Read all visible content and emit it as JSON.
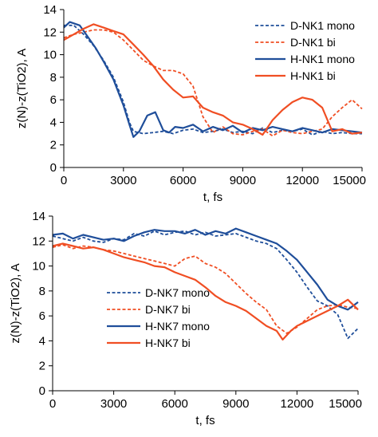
{
  "colors": {
    "blue": "#1f4e9a",
    "orange": "#f04e23"
  },
  "chart_data": [
    {
      "type": "line",
      "xlabel": "t, fs",
      "ylabel": "z(N)-z(TiO2), A",
      "xlim": [
        0,
        15000
      ],
      "ylim": [
        0,
        14
      ],
      "xticks": [
        0,
        3000,
        6000,
        9000,
        12000,
        15000
      ],
      "yticks": [
        0,
        2,
        4,
        6,
        8,
        10,
        12,
        14
      ],
      "grid": false,
      "legend_position": "top-right",
      "series": [
        {
          "name": "D-NK1 mono",
          "color": "blue",
          "dash": true,
          "x": [
            0,
            500,
            1000,
            1500,
            2000,
            2500,
            3000,
            3300,
            3500,
            4000,
            4500,
            5000,
            5500,
            6000,
            6500,
            7000,
            7500,
            8000,
            8500,
            9000,
            9500,
            10000,
            10500,
            11000,
            11500,
            12000,
            12500,
            13000,
            13500,
            14000,
            14500,
            15000
          ],
          "y": [
            12.6,
            12.6,
            11.8,
            10.8,
            9.5,
            8.0,
            5.8,
            4.0,
            3.2,
            3.0,
            3.1,
            3.2,
            3.0,
            3.3,
            3.4,
            3.1,
            3.2,
            3.4,
            3.1,
            3.2,
            3.0,
            3.5,
            3.1,
            3.3,
            3.2,
            3.4,
            2.9,
            3.2,
            3.0,
            3.1,
            3.0,
            3.0
          ]
        },
        {
          "name": "D-NK1 bi",
          "color": "orange",
          "dash": true,
          "x": [
            0,
            500,
            1000,
            1500,
            2000,
            2500,
            3000,
            3500,
            4000,
            4500,
            5000,
            5500,
            6000,
            6500,
            7000,
            7500,
            8000,
            8500,
            9000,
            9500,
            10000,
            10500,
            11000,
            11500,
            12000,
            12500,
            13000,
            13500,
            14000,
            14500,
            15000
          ],
          "y": [
            11.5,
            11.8,
            12.0,
            12.2,
            12.2,
            12.0,
            11.3,
            10.4,
            9.5,
            9.0,
            8.6,
            8.6,
            8.3,
            7.2,
            4.5,
            3.1,
            3.6,
            3.0,
            2.9,
            3.2,
            3.4,
            2.8,
            3.3,
            3.1,
            3.0,
            3.2,
            3.4,
            4.5,
            5.3,
            6.0,
            5.2
          ]
        },
        {
          "name": "H-NK1 mono",
          "color": "blue",
          "dash": false,
          "x": [
            0,
            300,
            800,
            1200,
            1600,
            2000,
            2500,
            3000,
            3300,
            3500,
            3800,
            4200,
            4600,
            5000,
            5300,
            5600,
            6000,
            6500,
            7000,
            7500,
            8000,
            8500,
            9000,
            9500,
            10000,
            10500,
            11000,
            11500,
            12000,
            12500,
            13000,
            13500,
            14000,
            14500,
            15000
          ],
          "y": [
            12.4,
            12.9,
            12.6,
            11.6,
            10.6,
            9.4,
            7.8,
            5.5,
            3.8,
            2.7,
            3.2,
            4.6,
            4.9,
            3.3,
            3.1,
            3.6,
            3.5,
            3.8,
            3.2,
            3.6,
            3.3,
            3.7,
            3.1,
            3.5,
            3.3,
            3.6,
            3.4,
            3.2,
            3.5,
            3.3,
            3.1,
            3.4,
            3.3,
            3.2,
            3.1
          ]
        },
        {
          "name": "H-NK1 bi",
          "color": "orange",
          "dash": false,
          "x": [
            0,
            500,
            1000,
            1500,
            2000,
            2500,
            3000,
            3500,
            4000,
            4500,
            5000,
            5500,
            6000,
            6500,
            7000,
            7500,
            8000,
            8500,
            9000,
            9500,
            10000,
            10500,
            11000,
            11500,
            12000,
            12500,
            13000,
            13500,
            14000,
            14500,
            15000
          ],
          "y": [
            11.3,
            11.8,
            12.3,
            12.7,
            12.4,
            12.1,
            11.8,
            10.9,
            10.0,
            9.0,
            7.8,
            6.9,
            6.2,
            6.3,
            5.3,
            4.9,
            4.6,
            4.0,
            3.8,
            3.4,
            2.9,
            4.2,
            5.1,
            5.8,
            6.2,
            6.0,
            5.3,
            3.2,
            3.4,
            3.0,
            3.1
          ]
        }
      ]
    },
    {
      "type": "line",
      "xlabel": "t, fs",
      "ylabel": "z(N)-z(TiO2), A",
      "xlim": [
        0,
        15000
      ],
      "ylim": [
        0,
        14
      ],
      "xticks": [
        0,
        3000,
        6000,
        9000,
        12000,
        15000
      ],
      "yticks": [
        0,
        2,
        4,
        6,
        8,
        10,
        12,
        14
      ],
      "grid": false,
      "legend_position": "bottom-left",
      "series": [
        {
          "name": "D-NK7 mono",
          "color": "blue",
          "dash": true,
          "x": [
            0,
            500,
            1000,
            1500,
            2000,
            2500,
            3000,
            3500,
            4000,
            4500,
            5000,
            5500,
            6000,
            6500,
            7000,
            7500,
            8000,
            8500,
            9000,
            9500,
            10000,
            10500,
            11000,
            11500,
            12000,
            12500,
            13000,
            13500,
            14000,
            14500,
            15000
          ],
          "y": [
            12.4,
            12.2,
            12.0,
            12.3,
            12.0,
            11.9,
            12.2,
            12.1,
            12.6,
            12.4,
            12.8,
            12.5,
            12.7,
            12.8,
            12.5,
            12.7,
            12.4,
            12.5,
            12.6,
            12.3,
            12.0,
            11.8,
            11.4,
            10.5,
            9.5,
            8.3,
            7.2,
            6.8,
            6.1,
            4.2,
            5.0
          ]
        },
        {
          "name": "D-NK7 bi",
          "color": "orange",
          "dash": true,
          "x": [
            0,
            500,
            1000,
            1500,
            2000,
            2500,
            3000,
            3500,
            4000,
            4500,
            5000,
            5500,
            6000,
            6500,
            7000,
            7500,
            8000,
            8500,
            9000,
            9500,
            10000,
            10500,
            11000,
            11500,
            12000,
            12500,
            13000,
            13500,
            14000,
            14500,
            15000
          ],
          "y": [
            11.5,
            11.7,
            11.4,
            11.6,
            11.5,
            11.3,
            11.2,
            11.0,
            10.8,
            10.6,
            10.4,
            10.2,
            10.0,
            10.6,
            10.8,
            10.2,
            9.9,
            9.4,
            8.6,
            7.8,
            7.1,
            6.5,
            5.2,
            4.6,
            5.1,
            5.8,
            6.5,
            6.8,
            6.9,
            6.7,
            6.6
          ]
        },
        {
          "name": "H-NK7 mono",
          "color": "blue",
          "dash": false,
          "x": [
            0,
            500,
            1000,
            1500,
            2000,
            2500,
            3000,
            3500,
            4000,
            4500,
            5000,
            5500,
            6000,
            6500,
            7000,
            7500,
            8000,
            8500,
            9000,
            9500,
            10000,
            10500,
            11000,
            11500,
            12000,
            12500,
            13000,
            13500,
            14000,
            14500,
            15000
          ],
          "y": [
            12.5,
            12.6,
            12.2,
            12.5,
            12.3,
            12.1,
            12.2,
            12.0,
            12.4,
            12.7,
            12.9,
            12.8,
            12.8,
            12.6,
            12.9,
            12.5,
            12.8,
            12.6,
            13.0,
            12.7,
            12.4,
            12.1,
            11.8,
            11.2,
            10.5,
            9.5,
            8.5,
            7.3,
            6.8,
            6.5,
            7.1
          ]
        },
        {
          "name": "H-NK7 bi",
          "color": "orange",
          "dash": false,
          "x": [
            0,
            500,
            1000,
            1500,
            2000,
            2500,
            3000,
            3500,
            4000,
            4500,
            5000,
            5500,
            6000,
            6500,
            7000,
            7500,
            8000,
            8500,
            9000,
            9500,
            10000,
            10500,
            11000,
            11300,
            11700,
            12000,
            12500,
            13000,
            13500,
            14000,
            14500,
            15000
          ],
          "y": [
            11.6,
            11.8,
            11.6,
            11.4,
            11.5,
            11.3,
            11.0,
            10.7,
            10.5,
            10.3,
            10.0,
            9.9,
            9.5,
            9.2,
            8.9,
            8.3,
            7.6,
            7.1,
            6.8,
            6.4,
            5.8,
            5.2,
            4.8,
            4.1,
            4.8,
            5.2,
            5.6,
            6.0,
            6.4,
            6.8,
            7.3,
            6.5
          ]
        }
      ]
    }
  ]
}
